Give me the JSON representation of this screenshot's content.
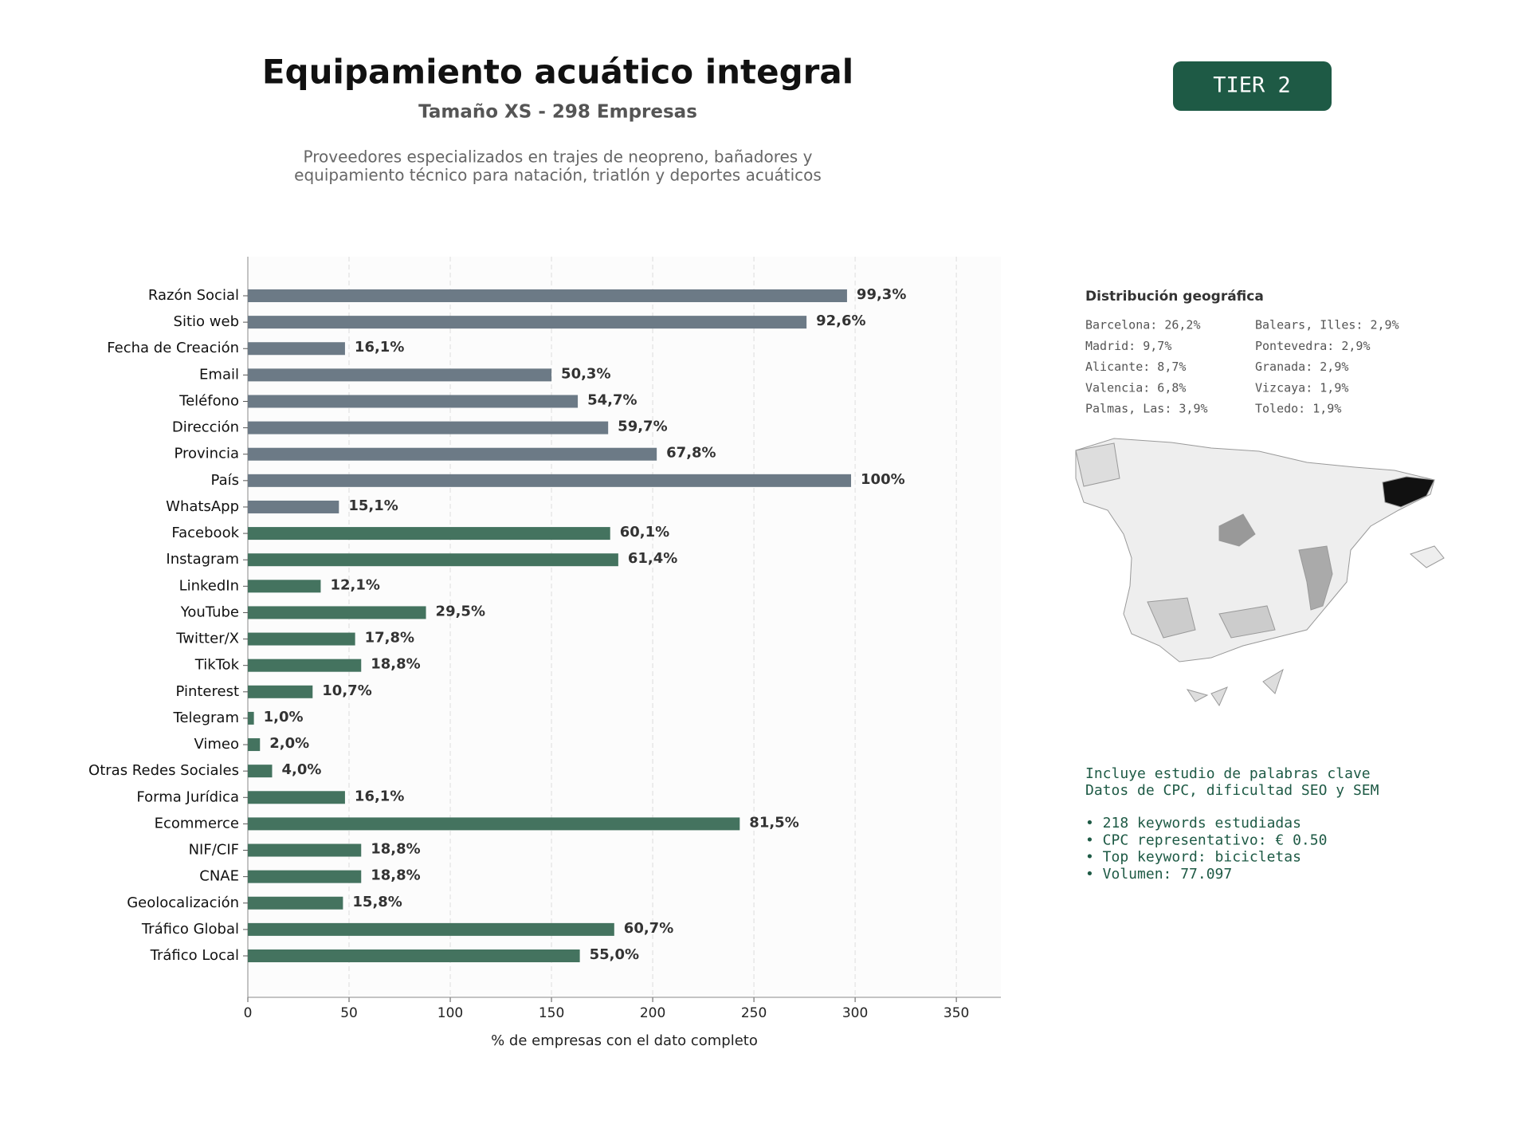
{
  "chart_data": {
    "type": "bar",
    "orientation": "horizontal",
    "title": "Equipamiento acuático integral",
    "subtitle": "Tamaño XS - 298 Empresas",
    "description": [
      "Proveedores especializados en trajes de neopreno, bañadores y",
      "equipamiento técnico para natación, triatlón y deportes acuáticos"
    ],
    "x_label": "% de empresas con el dato completo",
    "categories": [
      "Razón Social",
      "Sitio web",
      "Fecha de Creación",
      "Email",
      "Teléfono",
      "Dirección",
      "Provincia",
      "País",
      "WhatsApp",
      "Facebook",
      "Instagram",
      "LinkedIn",
      "YouTube",
      "Twitter/X",
      "TikTok",
      "Pinterest",
      "Telegram",
      "Vimeo",
      "Otras Redes Sociales",
      "Forma Jurídica",
      "Ecommerce",
      "NIF/CIF",
      "CNAE",
      "Geolocalización",
      "Tráfico Global",
      "Tráfico Local"
    ],
    "values": [
      296,
      276,
      48,
      150,
      163,
      178,
      202,
      298,
      45,
      179,
      183,
      36,
      88,
      53,
      56,
      32,
      3,
      6,
      12,
      48,
      243,
      56,
      56,
      47,
      181,
      164
    ],
    "value_labels": [
      "99,3%",
      "92,6%",
      "16,1%",
      "50,3%",
      "54,7%",
      "59,7%",
      "67,8%",
      "100%",
      "15,1%",
      "60,1%",
      "61,4%",
      "12,1%",
      "29,5%",
      "17,8%",
      "18,8%",
      "10,7%",
      "1,0%",
      "2,0%",
      "4,0%",
      "16,1%",
      "81,5%",
      "18,8%",
      "18,8%",
      "15,8%",
      "60,7%",
      "55,0%"
    ],
    "colors": [
      "#6c7a86",
      "#6c7a86",
      "#6c7a86",
      "#6c7a86",
      "#6c7a86",
      "#6c7a86",
      "#6c7a86",
      "#6c7a86",
      "#6c7a86",
      "#44735f",
      "#44735f",
      "#44735f",
      "#44735f",
      "#44735f",
      "#44735f",
      "#44735f",
      "#44735f",
      "#44735f",
      "#44735f",
      "#44735f",
      "#44735f",
      "#44735f",
      "#44735f",
      "#44735f",
      "#44735f",
      "#44735f"
    ],
    "xlim": [
      0,
      372
    ],
    "xticks": [
      0,
      50,
      100,
      150,
      200,
      250,
      300,
      350
    ],
    "grid": true
  },
  "badge": "TIER 2",
  "geo": {
    "title": "Distribución geográfica",
    "items": [
      "Barcelona: 26,2%",
      "Madrid: 9,7%",
      "Alicante: 8,7%",
      "Valencia: 6,8%",
      "Palmas, Las: 3,9%",
      "Balears, Illes: 2,9%",
      "Pontevedra: 2,9%",
      "Granada: 2,9%",
      "Vizcaya: 1,9%",
      "Toledo: 1,9%"
    ]
  },
  "keywords": {
    "intro": [
      "Incluye estudio de palabras clave",
      "Datos de CPC, dificultad SEO y SEM"
    ],
    "bullets": [
      "• 218 keywords estudiadas",
      "• CPC representativo: € 0.50",
      "• Top keyword: bicicletas",
      "• Volumen: 77.097"
    ]
  }
}
